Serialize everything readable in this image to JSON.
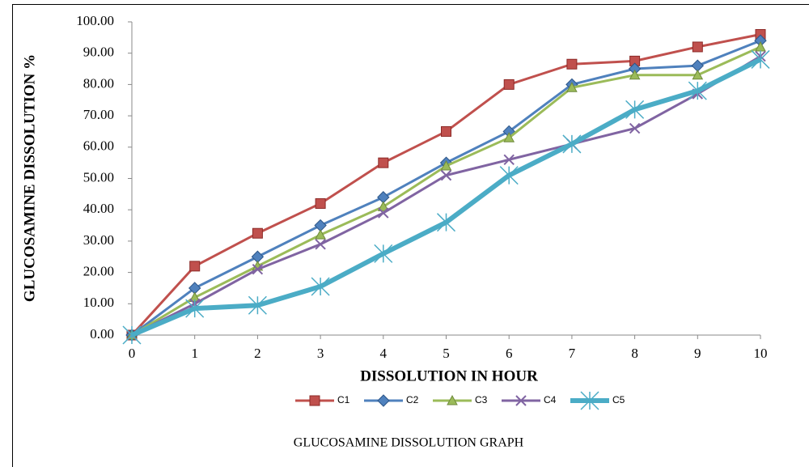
{
  "chart_data": {
    "type": "line",
    "y_axis_label": "GLUCOSAMINE  DISSOLUTION %",
    "x_axis_label": "DISSOLUTION IN HOUR",
    "caption": "GLUCOSAMINE DISSOLUTION GRAPH",
    "x": [
      0,
      1,
      2,
      3,
      4,
      5,
      6,
      7,
      8,
      9,
      10
    ],
    "xlim": [
      0,
      10
    ],
    "xticks": [
      0,
      1,
      2,
      3,
      4,
      5,
      6,
      7,
      8,
      9,
      10
    ],
    "ylim": [
      0,
      100
    ],
    "yticks": [
      {
        "value": 0,
        "label": "0.00"
      },
      {
        "value": 10,
        "label": "10.00"
      },
      {
        "value": 20,
        "label": "20.00"
      },
      {
        "value": 30,
        "label": "30.00"
      },
      {
        "value": 40,
        "label": "40.00"
      },
      {
        "value": 50,
        "label": "50.00"
      },
      {
        "value": 60,
        "label": "60.00"
      },
      {
        "value": 70,
        "label": "70.00"
      },
      {
        "value": 80,
        "label": "80.00"
      },
      {
        "value": 90,
        "label": "90.00"
      },
      {
        "value": 100,
        "label": "100.00"
      }
    ],
    "grid": false,
    "legend": "bottom",
    "series": [
      {
        "name": "C1",
        "color": "#c0504d",
        "marker": "square",
        "line_width": 3,
        "values": [
          0,
          22,
          32.5,
          42,
          55,
          65,
          80,
          86.5,
          87.5,
          92,
          96
        ]
      },
      {
        "name": "C2",
        "color": "#4f81bd",
        "marker": "diamond",
        "line_width": 3,
        "values": [
          0,
          15,
          25,
          35,
          44,
          55,
          65,
          80,
          85,
          86,
          94
        ]
      },
      {
        "name": "C3",
        "color": "#9bbb59",
        "marker": "triangle",
        "line_width": 3,
        "values": [
          0,
          12,
          22,
          32,
          41,
          54,
          63,
          79,
          83,
          83,
          92
        ]
      },
      {
        "name": "C4",
        "color": "#8064a2",
        "marker": "x",
        "line_width": 3,
        "values": [
          0,
          10,
          21,
          29,
          39,
          51,
          56,
          61,
          66,
          77,
          89
        ]
      },
      {
        "name": "C5",
        "color": "#4bacc6",
        "marker": "star",
        "line_width": 6,
        "values": [
          0,
          8.5,
          9.5,
          15.5,
          26,
          36,
          51,
          61,
          72,
          78,
          88
        ]
      }
    ]
  }
}
